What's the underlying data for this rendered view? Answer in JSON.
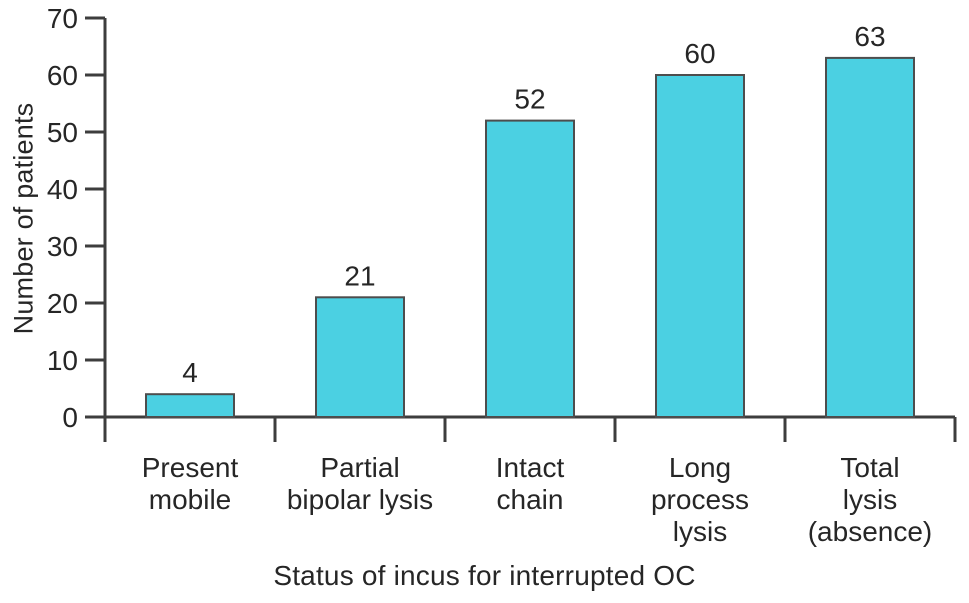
{
  "figure": {
    "background": "#FFFFFF"
  },
  "chart_data": {
    "type": "bar",
    "title": "",
    "xlabel": "Status of incus for interrupted OC",
    "ylabel": "Number of patients",
    "categories": [
      "Present mobile",
      "Partial bipolar lysis",
      "Intact chain",
      "Long process lysis",
      "Total lysis (absence)"
    ],
    "category_lines": [
      [
        "Present",
        "mobile"
      ],
      [
        "Partial",
        "bipolar lysis"
      ],
      [
        "Intact",
        "chain"
      ],
      [
        "Long",
        "process",
        "lysis"
      ],
      [
        "Total",
        "lysis",
        "(absence)"
      ]
    ],
    "values": [
      4,
      21,
      52,
      60,
      63
    ],
    "bar_labels": [
      "4",
      "21",
      "52",
      "60",
      "63"
    ],
    "ylim": [
      0,
      70
    ],
    "ytick_interval": 10,
    "ytick_labels": [
      "0",
      "10",
      "20",
      "30",
      "40",
      "50",
      "60",
      "70"
    ],
    "grid": false,
    "legend": null,
    "colors": {
      "bar_fill": "#4BD0E2",
      "bar_stroke": "#4D4D4D",
      "axis": "#3D3D3D",
      "text": "#262626"
    }
  }
}
